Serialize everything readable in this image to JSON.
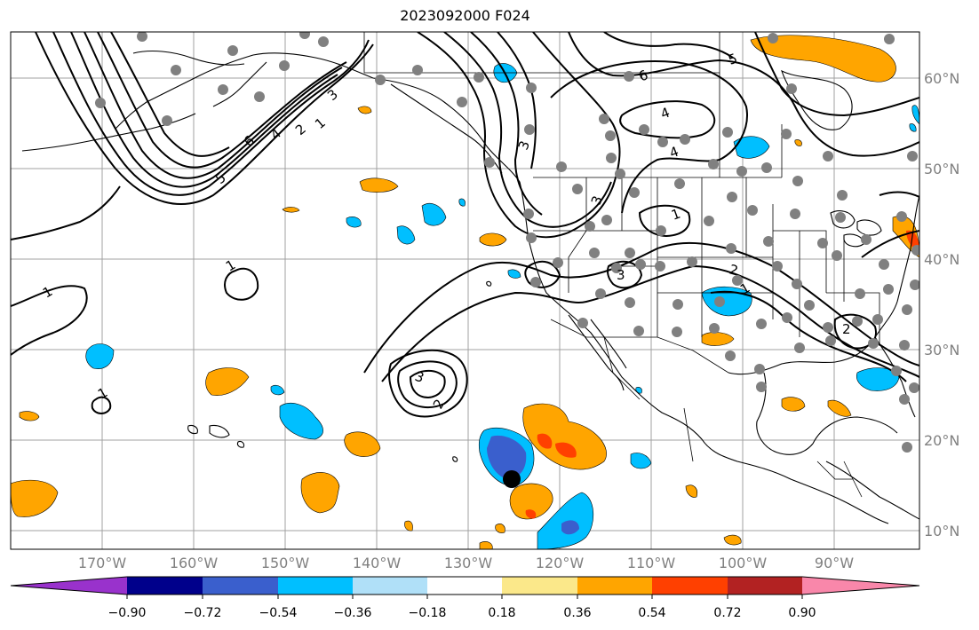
{
  "title": "2023092000 F024",
  "lat_labels": [
    "60°N",
    "50°N",
    "40°N",
    "30°N",
    "20°N",
    "10°N"
  ],
  "lon_labels": [
    "170°W",
    "160°W",
    "150°W",
    "140°W",
    "130°W",
    "120°W",
    "110°W",
    "100°W",
    "90°W"
  ],
  "colorbar": {
    "ticks": [
      "−0.90",
      "−0.72",
      "−0.54",
      "−0.36",
      "−0.18",
      "0.18",
      "0.36",
      "0.54",
      "0.72",
      "0.90"
    ],
    "colors": [
      "#9932cc",
      "#00008b",
      "#3a5fcd",
      "#00bfff",
      "#b0e0f8",
      "#ffffff",
      "#fbe88a",
      "#ffa500",
      "#ff4000",
      "#b22222",
      "#f987aa"
    ]
  },
  "contour_labels": [
    "5",
    "6",
    "4",
    "2",
    "1",
    "3",
    "6",
    "5",
    "4",
    "3",
    "4",
    "3",
    "1",
    "2",
    "1",
    "3",
    "2",
    "3",
    "1",
    "1",
    "2",
    "1"
  ],
  "marker_color": "#000000",
  "station_color": "#808080"
}
